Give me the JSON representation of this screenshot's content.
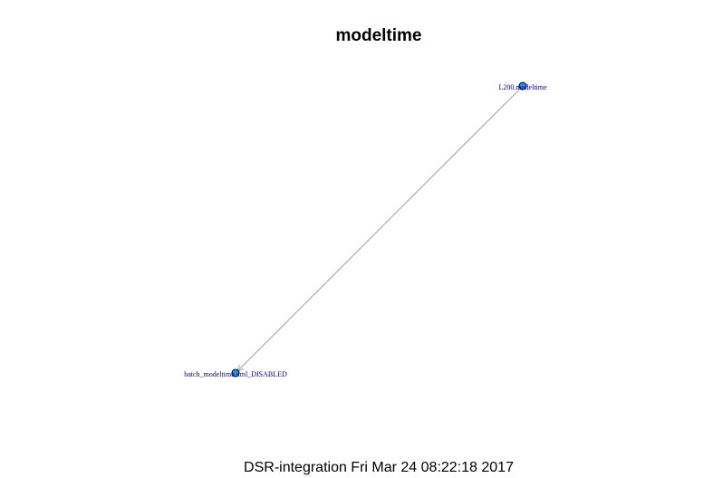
{
  "title": "modeltime",
  "footer": "DSR-integration Fri Mar 24 08:22:18 2017",
  "colors": {
    "node_fill": "#1e90ff",
    "node_stroke": "#000000",
    "label": "#00008b",
    "edge": "#a0a0a0"
  },
  "graph": {
    "nodes": [
      {
        "id": "L200",
        "label": "L200.modeltime"
      },
      {
        "id": "batch",
        "label": "batch_modeltime.xml_DISABLED"
      }
    ],
    "edges": [
      {
        "from": "L200",
        "to": "batch",
        "directed": true
      }
    ]
  }
}
